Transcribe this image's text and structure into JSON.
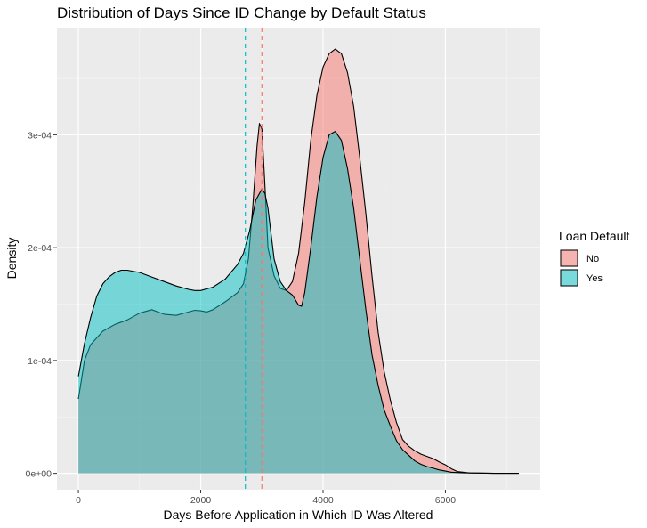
{
  "chart_data": {
    "type": "area",
    "subtype": "density",
    "title": "Distribution of Days Since ID Change by Default Status",
    "xlabel": "Days Before Application in Which ID Was Altered",
    "ylabel": "Density",
    "xlim": [
      -350,
      7550
    ],
    "ylim": [
      -1.45e-05,
      0.000395
    ],
    "x_ticks": [
      {
        "value": 0,
        "label": "0"
      },
      {
        "value": 2000,
        "label": "2000"
      },
      {
        "value": 4000,
        "label": "4000"
      },
      {
        "value": 6000,
        "label": "6000"
      }
    ],
    "x_minor": [
      1000,
      3000,
      5000,
      7000
    ],
    "y_ticks": [
      {
        "value": 0,
        "label": "0e+00"
      },
      {
        "value": 0.0001,
        "label": "1e-04"
      },
      {
        "value": 0.0002,
        "label": "2e-04"
      },
      {
        "value": 0.0003,
        "label": "3e-04"
      }
    ],
    "y_minor": [
      5e-05,
      0.00015,
      0.00025,
      0.00035
    ],
    "grid": true,
    "legend": {
      "title": "Loan Default",
      "position": "right"
    },
    "series": [
      {
        "name": "No",
        "color": "#F8766D",
        "mean_line": 3000,
        "points": [
          [
            0,
            6.6e-05
          ],
          [
            100,
            0.0001
          ],
          [
            200,
            0.000114
          ],
          [
            400,
            0.000126
          ],
          [
            600,
            0.000132
          ],
          [
            800,
            0.000136
          ],
          [
            1000,
            0.000142
          ],
          [
            1200,
            0.000145
          ],
          [
            1400,
            0.000141
          ],
          [
            1600,
            0.00014
          ],
          [
            1800,
            0.000143
          ],
          [
            1900,
            0.0001445
          ],
          [
            2000,
            0.000144
          ],
          [
            2100,
            0.000143
          ],
          [
            2200,
            0.000145
          ],
          [
            2400,
            0.000152
          ],
          [
            2600,
            0.00016
          ],
          [
            2700,
            0.000168
          ],
          [
            2780,
            0.00019
          ],
          [
            2850,
            0.000235
          ],
          [
            2920,
            0.00029
          ],
          [
            2960,
            0.00031
          ],
          [
            3000,
            0.000305
          ],
          [
            3050,
            0.000255
          ],
          [
            3100,
            0.0002
          ],
          [
            3200,
            0.000175
          ],
          [
            3300,
            0.000164
          ],
          [
            3400,
            0.000162
          ],
          [
            3500,
            0.00017
          ],
          [
            3600,
            0.000195
          ],
          [
            3700,
            0.00024
          ],
          [
            3800,
            0.000295
          ],
          [
            3900,
            0.000335
          ],
          [
            4000,
            0.00036
          ],
          [
            4100,
            0.000372
          ],
          [
            4200,
            0.000376
          ],
          [
            4300,
            0.000372
          ],
          [
            4400,
            0.000355
          ],
          [
            4500,
            0.000325
          ],
          [
            4600,
            0.00028
          ],
          [
            4700,
            0.00023
          ],
          [
            4800,
            0.000175
          ],
          [
            4900,
            0.000125
          ],
          [
            5000,
            9e-05
          ],
          [
            5100,
            6.5e-05
          ],
          [
            5200,
            4.5e-05
          ],
          [
            5300,
            3e-05
          ],
          [
            5400,
            2.4e-05
          ],
          [
            5500,
            2e-05
          ],
          [
            5600,
            1.7e-05
          ],
          [
            5700,
            1.5e-05
          ],
          [
            5800,
            1.3e-05
          ],
          [
            5900,
            1e-05
          ],
          [
            6000,
            7.5e-06
          ],
          [
            6100,
            4e-06
          ],
          [
            6200,
            1.5e-06
          ],
          [
            6400,
            3e-07
          ],
          [
            6800,
            0
          ],
          [
            7200,
            0
          ]
        ]
      },
      {
        "name": "Yes",
        "color": "#00BFC4",
        "mean_line": 2730,
        "points": [
          [
            0,
            8.6e-05
          ],
          [
            100,
            0.000115
          ],
          [
            200,
            0.000138
          ],
          [
            300,
            0.000157
          ],
          [
            400,
            0.000168
          ],
          [
            500,
            0.000174
          ],
          [
            600,
            0.000178
          ],
          [
            700,
            0.00018
          ],
          [
            800,
            0.00018
          ],
          [
            1000,
            0.000178
          ],
          [
            1200,
            0.000174
          ],
          [
            1400,
            0.00017
          ],
          [
            1600,
            0.000166
          ],
          [
            1800,
            0.000163
          ],
          [
            1900,
            0.000162
          ],
          [
            2000,
            0.000162
          ],
          [
            2200,
            0.000165
          ],
          [
            2400,
            0.000172
          ],
          [
            2600,
            0.000185
          ],
          [
            2700,
            0.000195
          ],
          [
            2800,
            0.000215
          ],
          [
            2900,
            0.000242
          ],
          [
            3000,
            0.000252
          ],
          [
            3050,
            0.000248
          ],
          [
            3100,
            0.000235
          ],
          [
            3200,
            0.00019
          ],
          [
            3300,
            0.00017
          ],
          [
            3400,
            0.000162
          ],
          [
            3500,
            0.000158
          ],
          [
            3600,
            0.000149
          ],
          [
            3650,
            0.000148
          ],
          [
            3700,
            0.00016
          ],
          [
            3800,
            0.0002
          ],
          [
            3900,
            0.000245
          ],
          [
            4000,
            0.00028
          ],
          [
            4100,
            0.0003
          ],
          [
            4200,
            0.000303
          ],
          [
            4300,
            0.000295
          ],
          [
            4400,
            0.00027
          ],
          [
            4500,
            0.000235
          ],
          [
            4600,
            0.00019
          ],
          [
            4700,
            0.000145
          ],
          [
            4800,
            0.000105
          ],
          [
            4900,
            7.8e-05
          ],
          [
            5000,
            5.6e-05
          ],
          [
            5100,
            4.2e-05
          ],
          [
            5200,
            2.9e-05
          ],
          [
            5300,
            2.1e-05
          ],
          [
            5400,
            1.6e-05
          ],
          [
            5500,
            1.1e-05
          ],
          [
            5600,
            8e-06
          ],
          [
            5700,
            6e-06
          ],
          [
            5800,
            4.5e-06
          ],
          [
            5900,
            3e-06
          ],
          [
            6000,
            2e-06
          ],
          [
            6100,
            1e-06
          ],
          [
            6300,
            4e-07
          ],
          [
            6800,
            0
          ],
          [
            7200,
            0
          ]
        ]
      }
    ]
  }
}
